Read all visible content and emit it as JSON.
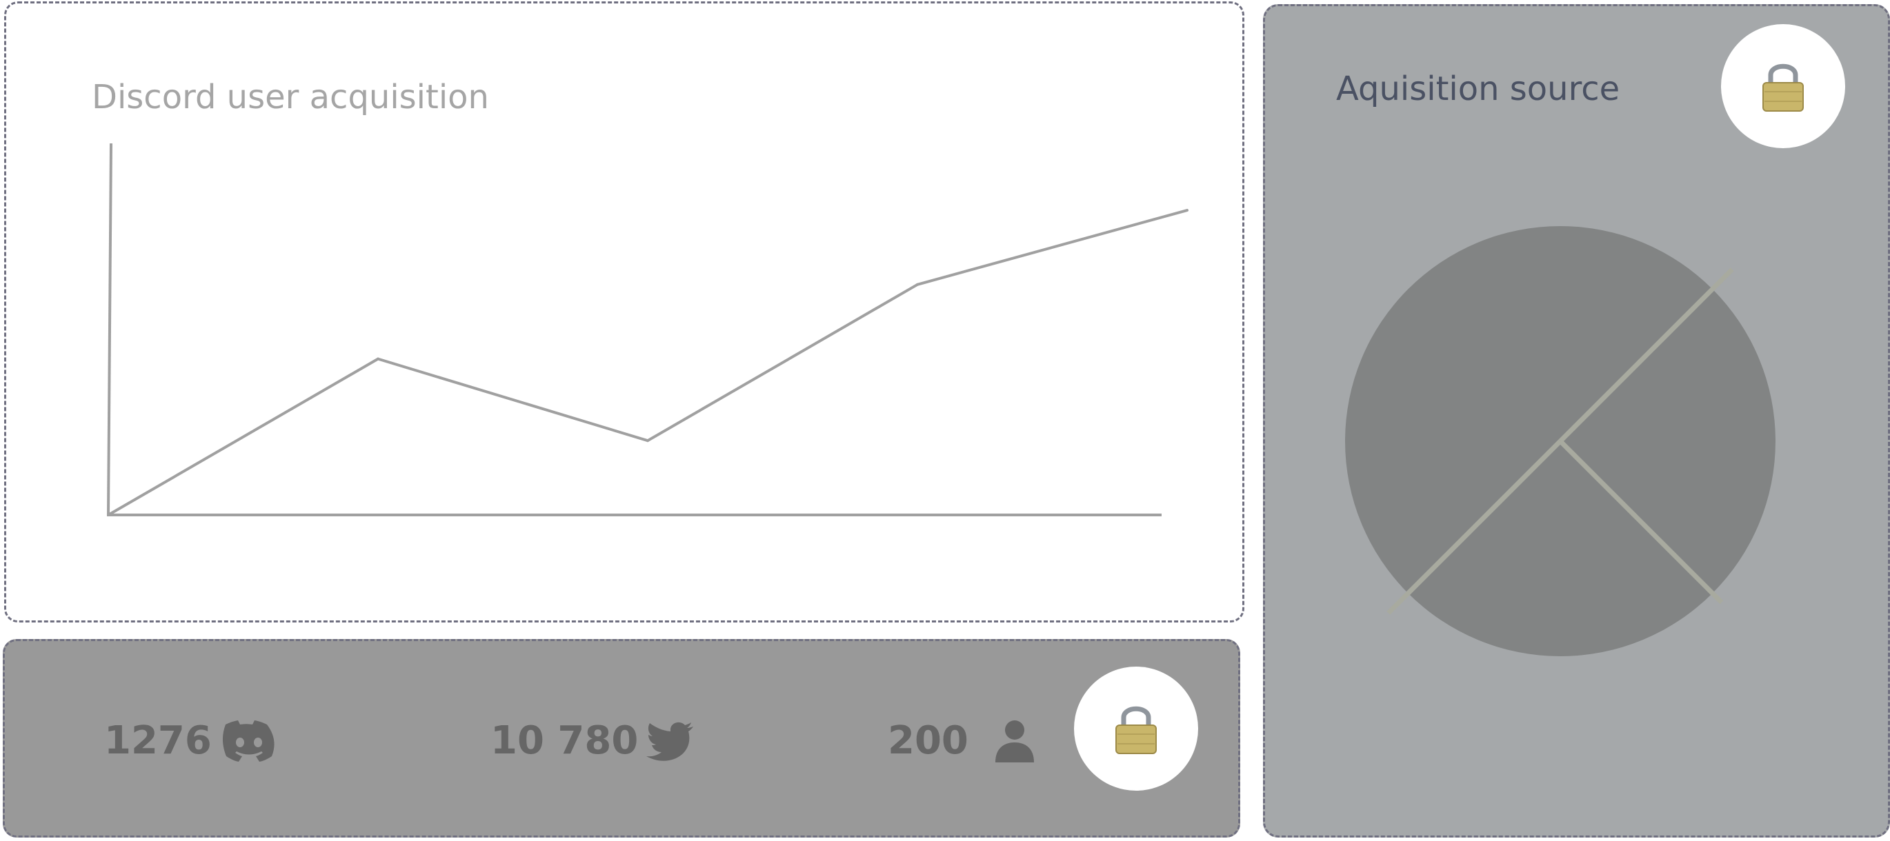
{
  "chart_card": {
    "title": "Discord user acquisition"
  },
  "chart_data": [
    {
      "type": "line",
      "title": "Discord user acquisition",
      "xlabel": "",
      "ylabel": "",
      "x": [
        0,
        1,
        2,
        3,
        4
      ],
      "values": [
        0,
        0.42,
        0.2,
        0.62,
        0.82
      ],
      "ylim": [
        0,
        1
      ],
      "grid": false,
      "line_color": "#a0a0a0"
    },
    {
      "type": "pie",
      "title": "Aquisition source",
      "values": [
        0.5,
        0.25,
        0.25
      ],
      "fill_color": "#828484",
      "divider_color": "#a8aa9f"
    }
  ],
  "source_card": {
    "title": "Aquisition source",
    "lock_icon": "lock-icon"
  },
  "stats": {
    "lock_icon": "lock-icon",
    "items": [
      {
        "value": "1276",
        "icon": "discord-icon"
      },
      {
        "value": "10 780",
        "icon": "twitter-icon"
      },
      {
        "value": "200",
        "icon": "user-icon"
      }
    ]
  },
  "colors": {
    "chart_card_bg": "#ffffff",
    "stats_card_bg": "#999999",
    "source_card_bg": "#a5a8aa",
    "border": "#6f6f80",
    "stat_text": "#666666",
    "lock_body": "#c9b66a"
  }
}
